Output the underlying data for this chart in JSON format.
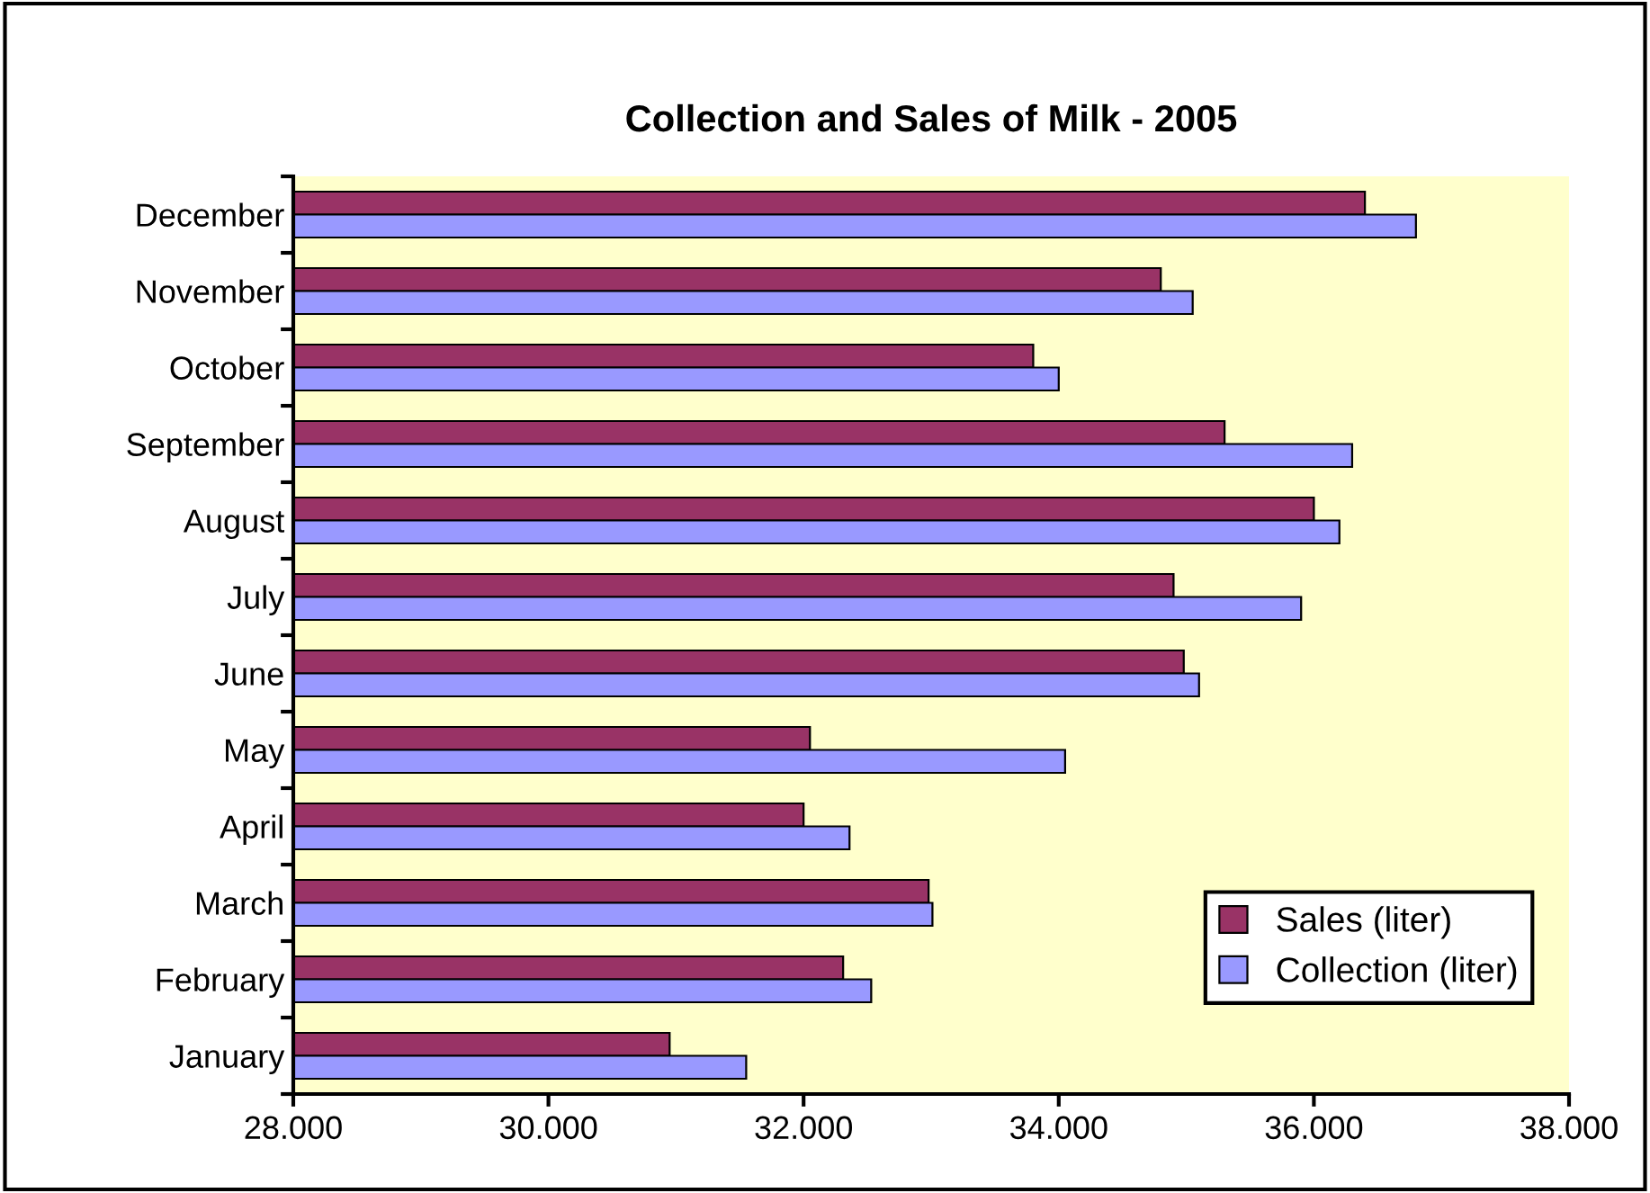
{
  "chart_data": {
    "type": "bar",
    "orientation": "horizontal",
    "title": "Collection and Sales of Milk - 2005",
    "categories": [
      "December",
      "November",
      "October",
      "September",
      "August",
      "July",
      "June",
      "May",
      "April",
      "March",
      "February",
      "January"
    ],
    "series": [
      {
        "name": "Sales (liter)",
        "color": "#993366",
        "values": [
          36400,
          34800,
          33800,
          35300,
          36000,
          34900,
          34980,
          32050,
          32000,
          32980,
          32310,
          30950
        ]
      },
      {
        "name": "Collection (liter)",
        "color": "#9999ff",
        "values": [
          36800,
          35050,
          34000,
          36300,
          36200,
          35900,
          35100,
          34050,
          32360,
          33010,
          32530,
          31550
        ]
      }
    ],
    "xlim": [
      28000,
      38000
    ],
    "xticks": [
      {
        "value": 28000,
        "label": "28.000"
      },
      {
        "value": 30000,
        "label": "30.000"
      },
      {
        "value": 32000,
        "label": "32.000"
      },
      {
        "value": 34000,
        "label": "34.000"
      },
      {
        "value": 36000,
        "label": "36.000"
      },
      {
        "value": 38000,
        "label": "38.000"
      }
    ],
    "grid": false,
    "legend": "bottom right"
  }
}
